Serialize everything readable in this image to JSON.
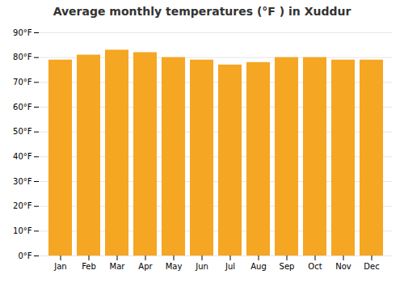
{
  "chart_data": {
    "type": "bar",
    "title": "Average monthly temperatures (°F ) in Xuddur",
    "categories": [
      "Jan",
      "Feb",
      "Mar",
      "Apr",
      "May",
      "Jun",
      "Jul",
      "Aug",
      "Sep",
      "Oct",
      "Nov",
      "Dec"
    ],
    "values": [
      79,
      81,
      83,
      82,
      80,
      79,
      77,
      78,
      80,
      80,
      79,
      79
    ],
    "color": "#F5A623",
    "ylim": [
      0,
      90
    ],
    "yticks": [
      {
        "value": 0,
        "label": "0°F"
      },
      {
        "value": 10,
        "label": "10°F"
      },
      {
        "value": 20,
        "label": "20°F"
      },
      {
        "value": 30,
        "label": "30°F"
      },
      {
        "value": 40,
        "label": "40°F"
      },
      {
        "value": 50,
        "label": "50°F"
      },
      {
        "value": 60,
        "label": "60°F"
      },
      {
        "value": 70,
        "label": "70°F"
      },
      {
        "value": 80,
        "label": "80°F"
      },
      {
        "value": 90,
        "label": "90°F"
      }
    ],
    "grid": true
  }
}
